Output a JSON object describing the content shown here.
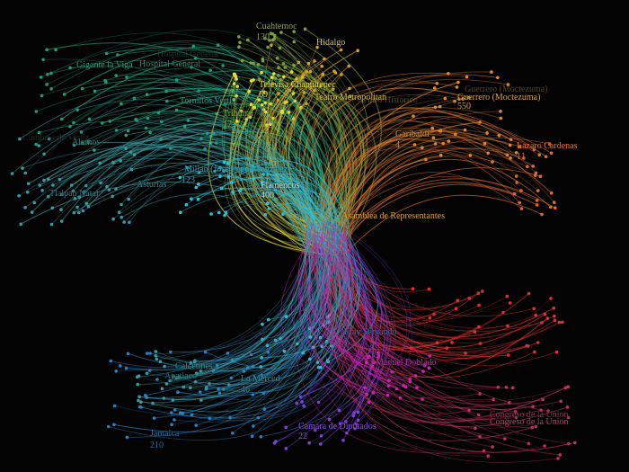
{
  "colors": {
    "background": "#030303",
    "green": "#1f9c7a",
    "olive": "#7fa040",
    "yellow": "#e8e030",
    "gold": "#d0a030",
    "orange": "#e08a30",
    "orange_red": "#e06a30",
    "red": "#e03030",
    "magenta": "#d020c0",
    "violet": "#8040e0",
    "cyan": "#30c0d8",
    "teal": "#3a9aa0",
    "blue": "#2a80c0",
    "pink": "#c03060"
  },
  "labels": [
    {
      "text": "Cuahtemoc",
      "color": "#8aa848"
    },
    {
      "text": "130",
      "color": "#8aa848"
    },
    {
      "text": "Hidalgo",
      "color": "#d8c070"
    },
    {
      "text": "Televisa Chapultepec",
      "color": "#f0e840"
    },
    {
      "text": "69",
      "color": "#f0e840"
    },
    {
      "text": "Teatro Metropolitan",
      "color": "#d8c048"
    },
    {
      "text": "Centro Historico",
      "color": "#a09030"
    },
    {
      "text": "Guerrero (Moctezuma)",
      "color": "#b88a40"
    },
    {
      "text": "Guerrero (Moctezuma)",
      "color": "#d0a050"
    },
    {
      "text": "550",
      "color": "#d0a050"
    },
    {
      "text": "Garibaldi",
      "color": "#d09040"
    },
    {
      "text": "4",
      "color": "#d09040"
    },
    {
      "text": "Lazaro Cardenas",
      "color": "#f07030"
    },
    {
      "text": "11",
      "color": "#f07030"
    },
    {
      "text": "Asamblea de Representantes",
      "color": "#e0a820"
    },
    {
      "text": "Hospital General",
      "color": "#2a6a58"
    },
    {
      "text": "Hospital General",
      "color": "#3a8070"
    },
    {
      "text": "Gigante la Viga",
      "color": "#2a9a78"
    },
    {
      "text": "Tornillos Vertis",
      "color": "#3aa090"
    },
    {
      "text": "Tribunal",
      "color": "#88a840"
    },
    {
      "text": "17",
      "color": "#88a840"
    },
    {
      "text": "Cumbres de Vertiz",
      "color": "#2a5a58"
    },
    {
      "text": "Alamos",
      "color": "#3a8080"
    },
    {
      "text": "Millan (Jose Pepe) Gonzalez",
      "color": "#40a0b0"
    },
    {
      "text": "123",
      "color": "#40a0b0"
    },
    {
      "text": "Flamencos",
      "color": "#b0e0e0"
    },
    {
      "text": "400",
      "color": "#b0e0e0"
    },
    {
      "text": "Asturias",
      "color": "#3a8088"
    },
    {
      "text": "Tlalpan Natal",
      "color": "#2a7890"
    },
    {
      "text": "Fray Servando",
      "color": "#2a70b0"
    },
    {
      "text": "Manuel Doblado",
      "color": "#c020b0"
    },
    {
      "text": "Calcetines",
      "color": "#2a9088"
    },
    {
      "text": "Apatlaco",
      "color": "#2a7878"
    },
    {
      "text": "La Merced",
      "color": "#2a90a8"
    },
    {
      "text": "46",
      "color": "#2a90a8"
    },
    {
      "text": "Camara de Diputados",
      "color": "#9050e8"
    },
    {
      "text": "22",
      "color": "#9050e8"
    },
    {
      "text": "Jamaica",
      "color": "#2a70a0"
    },
    {
      "text": "210",
      "color": "#2a70a0"
    },
    {
      "text": "Congreso de la Union",
      "color": "#a02858"
    },
    {
      "text": "Congreso de la Union",
      "color": "#c03868"
    }
  ]
}
